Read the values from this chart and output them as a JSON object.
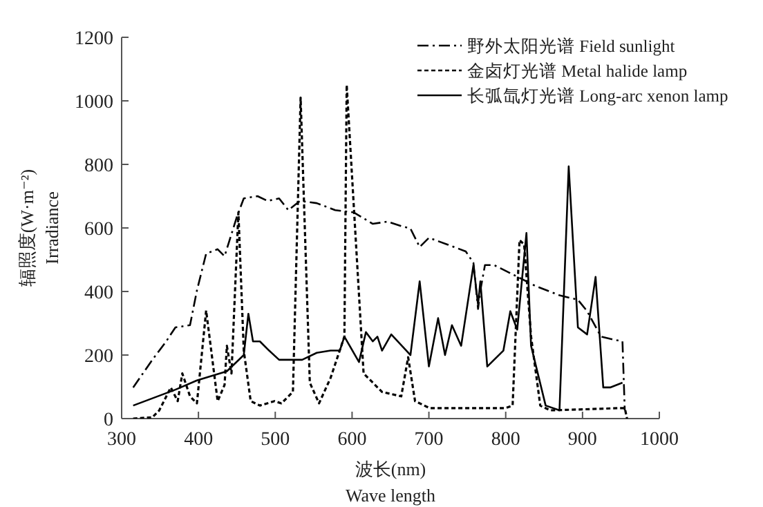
{
  "chart_data": {
    "type": "line",
    "xlabel": "波长(nm)\nWave length",
    "ylabel": "辐照度(W·m⁻²)\nIrradiance",
    "xlim": [
      300,
      1000
    ],
    "ylim": [
      0,
      1200
    ],
    "xticks": [
      300,
      400,
      500,
      600,
      700,
      800,
      900,
      1000
    ],
    "yticks": [
      0,
      200,
      400,
      600,
      800,
      1000,
      1200
    ],
    "legend": "top right",
    "grid": false,
    "marker": "none",
    "series": [
      {
        "name": "野外太阳光谱 Field sunlight",
        "color": "#000000",
        "line_style": "dashdot",
        "x": [
          315,
          340,
          358,
          370,
          389,
          398,
          410,
          425,
          434,
          450,
          459,
          477,
          490,
          505,
          517,
          532,
          554,
          578,
          602,
          627,
          646,
          664,
          676,
          688,
          700,
          724,
          748,
          758,
          764,
          767,
          773,
          785,
          809,
          839,
          870,
          894,
          906,
          924,
          936,
          952,
          955
        ],
        "values": [
          98,
          185,
          243,
          287,
          294,
          403,
          519,
          533,
          511,
          635,
          693,
          700,
          685,
          693,
          656,
          685,
          678,
          656,
          649,
          613,
          620,
          606,
          598,
          540,
          569,
          548,
          526,
          490,
          345,
          403,
          483,
          483,
          454,
          417,
          388,
          374,
          338,
          258,
          251,
          243,
          26
        ]
      },
      {
        "name": "金卤灯光谱 Metal halide lamp",
        "color": "#000000",
        "line_style": "dashed",
        "x": [
          315,
          340,
          349,
          364,
          373,
          379,
          389,
          398,
          410,
          425,
          434,
          437,
          443,
          452,
          459,
          468,
          480,
          499,
          508,
          523,
          533,
          545,
          557,
          572,
          590,
          593,
          615,
          639,
          664,
          673,
          682,
          701,
          712,
          800,
          809,
          818,
          824,
          833,
          845,
          858,
          900,
          948,
          955,
          958
        ],
        "values": [
          0,
          4,
          26,
          98,
          55,
          142,
          70,
          48,
          340,
          55,
          106,
          229,
          142,
          649,
          214,
          55,
          41,
          55,
          48,
          84,
          1010,
          113,
          48,
          128,
          258,
          1050,
          142,
          84,
          70,
          193,
          55,
          33,
          33,
          33,
          41,
          562,
          548,
          258,
          41,
          26,
          29,
          33,
          33,
          0
        ]
      },
      {
        "name": "长弧氙灯光谱 Long-arc xenon lamp",
        "color": "#000000",
        "line_style": "solid",
        "x": [
          315,
          370,
          398,
          437,
          459,
          465,
          471,
          480,
          492,
          505,
          535,
          554,
          572,
          584,
          590,
          609,
          618,
          627,
          633,
          639,
          651,
          676,
          688,
          700,
          712,
          721,
          730,
          742,
          758,
          764,
          767,
          776,
          797,
          806,
          815,
          827,
          833,
          852,
          870,
          882,
          894,
          906,
          917,
          927,
          936,
          952
        ],
        "values": [
          41,
          91,
          120,
          149,
          200,
          330,
          243,
          243,
          214,
          185,
          185,
          207,
          214,
          214,
          258,
          178,
          272,
          243,
          258,
          214,
          265,
          200,
          432,
          164,
          316,
          200,
          294,
          229,
          483,
          359,
          432,
          164,
          214,
          338,
          280,
          584,
          229,
          41,
          26,
          794,
          287,
          265,
          446,
          98,
          98,
          113
        ]
      }
    ]
  }
}
